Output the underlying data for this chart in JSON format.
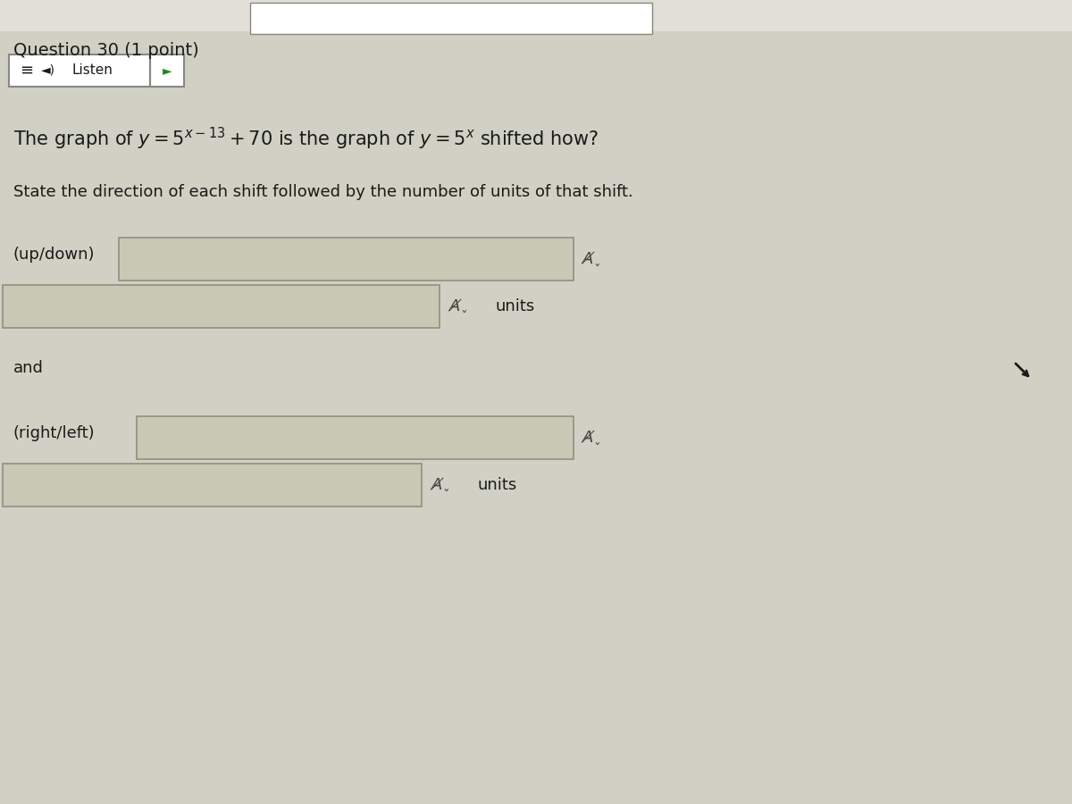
{
  "title": "Question 30 (1 point)",
  "bg_color": "#d0d0c4",
  "white": "#ffffff",
  "text_color": "#1a1a1a",
  "line1": "The graph of $y = 5^{x-13} + 70$ is the graph of $y = 5^{x}$ shifted how?",
  "line2": "State the direction of each shift followed by the number of units of that shift.",
  "label1": "(up/down)",
  "label2": "and",
  "label3": "(right/left)",
  "units_text": "units",
  "listen_text": "Listen",
  "input_box_color": "#c8c8b4",
  "input_border_color": "#909080",
  "top_bar_color": "#e0e0d8",
  "play_color": "#228822"
}
